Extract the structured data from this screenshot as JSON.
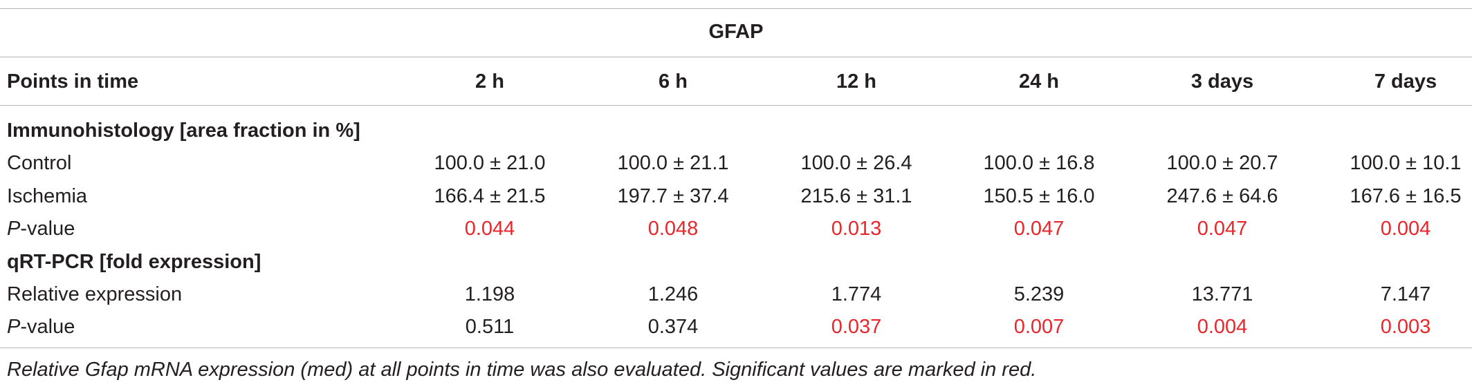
{
  "table": {
    "title": "GFAP",
    "header": {
      "label": "Points in time",
      "columns": [
        "2 h",
        "6 h",
        "12 h",
        "24 h",
        "3 days",
        "7 days"
      ]
    },
    "sections": [
      {
        "heading": "Immunohistology [area fraction in %]",
        "rows": [
          {
            "label": "Control",
            "label_italic_prefix": "",
            "values": [
              "100.0 ± 21.0",
              "100.0 ± 21.1",
              "100.0 ± 26.4",
              "100.0 ± 16.8",
              "100.0 ± 20.7",
              "100.0 ± 10.1"
            ],
            "significant": [
              false,
              false,
              false,
              false,
              false,
              false
            ]
          },
          {
            "label": "Ischemia",
            "label_italic_prefix": "",
            "values": [
              "166.4 ± 21.5",
              "197.7 ± 37.4",
              "215.6 ± 31.1",
              "150.5 ± 16.0",
              "247.6 ± 64.6",
              "167.6 ± 16.5"
            ],
            "significant": [
              false,
              false,
              false,
              false,
              false,
              false
            ]
          },
          {
            "label": "-value",
            "label_italic_prefix": "P",
            "values": [
              "0.044",
              "0.048",
              "0.013",
              "0.047",
              "0.047",
              "0.004"
            ],
            "significant": [
              true,
              true,
              true,
              true,
              true,
              true
            ]
          }
        ]
      },
      {
        "heading": "qRT-PCR [fold expression]",
        "rows": [
          {
            "label": "Relative expression",
            "label_italic_prefix": "",
            "values": [
              "1.198",
              "1.246",
              "1.774",
              "5.239",
              "13.771",
              "7.147"
            ],
            "significant": [
              false,
              false,
              false,
              false,
              false,
              false
            ]
          },
          {
            "label": "-value",
            "label_italic_prefix": "P",
            "values": [
              "0.511",
              "0.374",
              "0.037",
              "0.007",
              "0.004",
              "0.003"
            ],
            "significant": [
              false,
              false,
              true,
              true,
              true,
              true
            ]
          }
        ]
      }
    ],
    "footnote": "Relative Gfap mRNA expression (med) at all points in time was also evaluated. Significant values are marked in red.",
    "colors": {
      "significant": "#e8262b",
      "text": "#231f20",
      "rule": "#b5b5b5"
    }
  }
}
